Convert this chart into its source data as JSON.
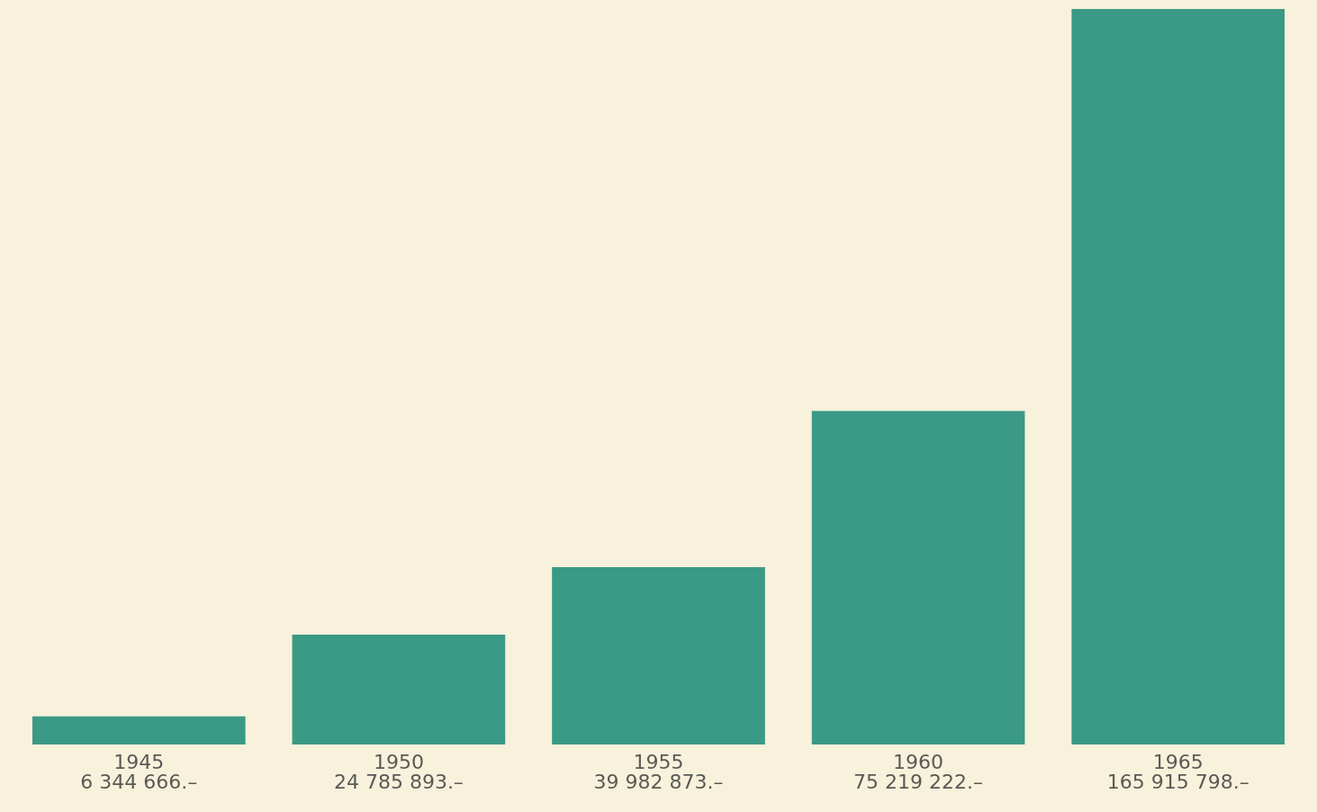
{
  "chart_data": {
    "type": "bar",
    "categories": [
      "1945",
      "1950",
      "1955",
      "1960",
      "1965"
    ],
    "values": [
      6344666,
      24785893,
      39982873,
      75219222,
      165915798
    ],
    "value_labels": [
      "6 344 666.–",
      "24 785 893.–",
      "39 982 873.–",
      "75 219 222.–",
      "165 915 798.–"
    ],
    "color": "#3a9a85"
  }
}
